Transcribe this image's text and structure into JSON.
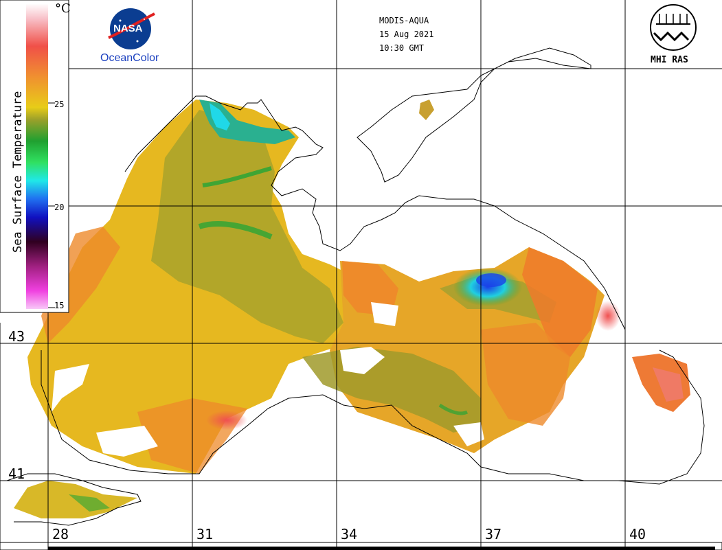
{
  "header": {
    "sensor": "MODIS-AQUA",
    "date": "15 Aug 2021",
    "time": "10:30 GMT"
  },
  "logos": {
    "nasa_text": "NASA",
    "oceancolor": "OceanColor",
    "mhi_text": "MHI RAS"
  },
  "colorbar": {
    "title": "Sea Surface Temperature",
    "unit": "°C",
    "ticks": [
      "25",
      "20",
      "15"
    ]
  },
  "latitude_labels": [
    "43",
    "41"
  ],
  "longitude_labels": [
    "28",
    "31",
    "34",
    "37",
    "40"
  ],
  "colors": {
    "warm": "#e8b020",
    "olive": "#a8a22c",
    "orange": "#ee8a2a",
    "green": "#2aa536",
    "cyan": "#20e0e0",
    "blue": "#1a3cf0",
    "red": "#f05050"
  }
}
